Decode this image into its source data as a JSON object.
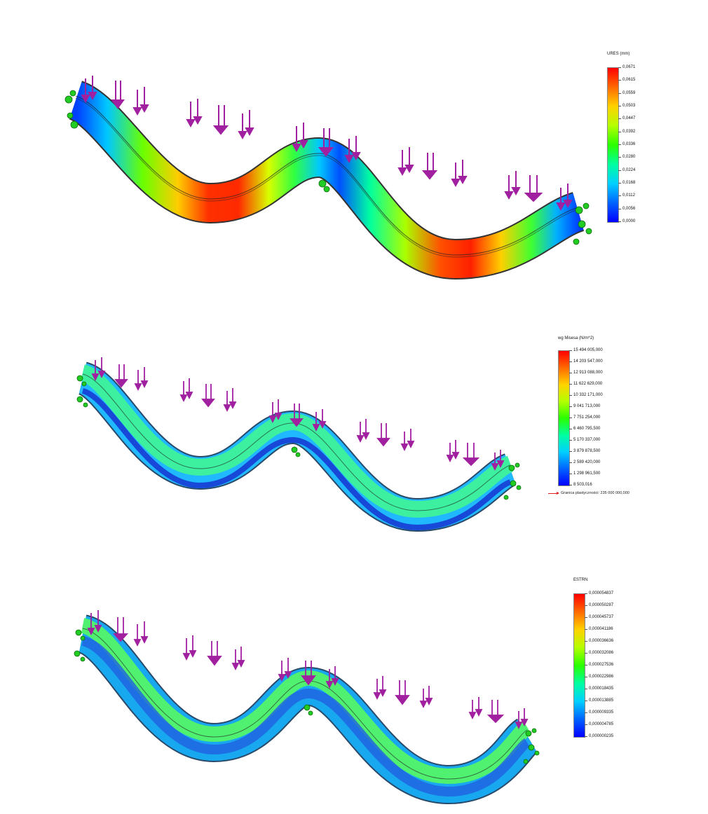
{
  "panels": [
    {
      "id": "displacement",
      "legend_title": "URES (mm)",
      "colors": [
        "#ff0000",
        "#ff6a00",
        "#ffd200",
        "#b4ff00",
        "#2aff00",
        "#00ffa0",
        "#00d0ff",
        "#0064ff",
        "#0000ff"
      ],
      "labels": [
        "0,0671",
        "0,0615",
        "0,0559",
        "0,0503",
        "0,0447",
        "0,0392",
        "0,0336",
        "0,0280",
        "0,0224",
        "0,0168",
        "0,0112",
        "0,0056",
        "0,0000"
      ]
    },
    {
      "id": "von-mises",
      "legend_title": "wg Misesa (N/m^2)",
      "colors": [
        "#ff0000",
        "#ff6a00",
        "#ffd200",
        "#b4ff00",
        "#2aff00",
        "#00ffa0",
        "#00d0ff",
        "#0064ff",
        "#0000ff"
      ],
      "labels": [
        "15 494 005,000",
        "14 203 547,000",
        "12 913 088,000",
        "11 622 629,000",
        "10 332 171,000",
        "9 041 713,000",
        "7 751 254,000",
        "6 460 795,500",
        "5 170 337,000",
        "3 879 878,500",
        "2 589 420,000",
        "1 298 961,500",
        "8 503,016"
      ],
      "yield_note": "Granica plastyczności: 235 000 000,000"
    },
    {
      "id": "strain",
      "legend_title": "ESTRN",
      "colors": [
        "#ff0000",
        "#ff6a00",
        "#ffd200",
        "#b4ff00",
        "#2aff00",
        "#00ffa0",
        "#00d0ff",
        "#0064ff",
        "#0000ff"
      ],
      "labels": [
        "0,000054837",
        "0,000050287",
        "0,000045737",
        "0,000041186",
        "0,000036636",
        "0,000032086",
        "0,000027536",
        "0,000022986",
        "0,000018435",
        "0,000013885",
        "0,000009335",
        "0,000004785",
        "0,000000235"
      ]
    }
  ]
}
